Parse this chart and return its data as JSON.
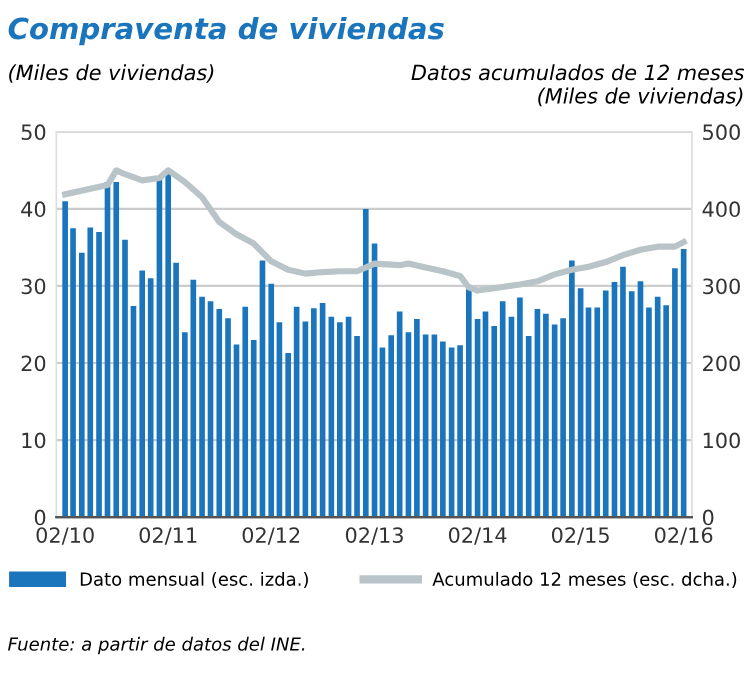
{
  "chart_data": {
    "type": "bar",
    "title": "Compraventa de viviendas",
    "ylabel": "(Miles de viviendas)",
    "y2label": "Datos acumulados de 12 meses\n(Miles de viviendas)",
    "x": [
      "2010-02",
      "2010-03",
      "2010-04",
      "2010-05",
      "2010-06",
      "2010-07",
      "2010-08",
      "2010-09",
      "2010-10",
      "2010-11",
      "2010-12",
      "2011-01",
      "2011-02",
      "2011-03",
      "2011-04",
      "2011-05",
      "2011-06",
      "2011-07",
      "2011-08",
      "2011-09",
      "2011-10",
      "2011-11",
      "2011-12",
      "2012-01",
      "2012-02",
      "2012-03",
      "2012-04",
      "2012-05",
      "2012-06",
      "2012-07",
      "2012-08",
      "2012-09",
      "2012-10",
      "2012-11",
      "2012-12",
      "2013-01",
      "2013-02",
      "2013-03",
      "2013-04",
      "2013-05",
      "2013-06",
      "2013-07",
      "2013-08",
      "2013-09",
      "2013-10",
      "2013-11",
      "2013-12",
      "2014-01",
      "2014-02",
      "2014-03",
      "2014-04",
      "2014-05",
      "2014-06",
      "2014-07",
      "2014-08",
      "2014-09",
      "2014-10",
      "2014-11",
      "2014-12",
      "2015-01",
      "2015-02",
      "2015-03",
      "2015-04",
      "2015-05",
      "2015-06",
      "2015-07",
      "2015-08",
      "2015-09",
      "2015-10",
      "2015-11",
      "2015-12",
      "2016-01",
      "2016-02"
    ],
    "series": [
      {
        "name": "Dato mensual (esc. izda.)",
        "color": "#1a75bc",
        "values": [
          41,
          37.5,
          34.3,
          37.6,
          37,
          43.5,
          43.5,
          36,
          27.4,
          32,
          31,
          44,
          45,
          33,
          24,
          30.8,
          28.6,
          28,
          27,
          25.8,
          22.4,
          27.3,
          23,
          33.3,
          30.3,
          25.3,
          21.3,
          27.3,
          25.4,
          27.1,
          27.8,
          26,
          25.3,
          26,
          23.5,
          40,
          35.5,
          22,
          23.6,
          26.7,
          24,
          25.7,
          23.7,
          23.7,
          22.8,
          22,
          22.3,
          30,
          25.7,
          26.7,
          24.8,
          28,
          26,
          28.5,
          23.5,
          27,
          26.4,
          25,
          25.8,
          33.3,
          29.7,
          27.2,
          27.2,
          29.4,
          30.5,
          32.5,
          29.3,
          30.6,
          27.2,
          28.6,
          27.5,
          32.3,
          34.8
        ]
      },
      {
        "name": "Acumulado 12 meses (esc. dcha.)",
        "type": "line",
        "axis": "y2",
        "color": "#b8c4c8",
        "x": [
          "2010-02",
          "2010-07",
          "2010-08",
          "2010-09",
          "2010-11",
          "2011-01",
          "2011-02",
          "2011-04",
          "2011-06",
          "2011-08",
          "2011-10",
          "2011-12",
          "2012-02",
          "2012-04",
          "2012-06",
          "2012-08",
          "2012-10",
          "2012-12",
          "2013-01",
          "2013-02",
          "2013-05",
          "2013-06",
          "2013-08",
          "2013-10",
          "2013-12",
          "2014-01",
          "2014-02",
          "2014-04",
          "2014-07",
          "2014-09",
          "2014-11",
          "2015-01",
          "2015-03",
          "2015-05",
          "2015-07",
          "2015-09",
          "2015-11",
          "2016-01",
          "2016-02"
        ],
        "values": [
          419,
          431,
          450,
          445,
          437,
          440,
          450,
          435,
          415,
          383,
          367,
          355,
          332,
          321,
          316,
          318,
          319,
          319,
          324,
          329,
          327,
          329,
          324,
          319,
          313,
          298,
          294,
          297,
          302,
          306,
          315,
          321,
          325,
          331,
          340,
          347,
          351,
          351,
          357
        ]
      }
    ],
    "xlim": [
      "2010-01",
      "2016-03"
    ],
    "xticks": [
      {
        "value": "2010-02",
        "label": "02/10"
      },
      {
        "value": "2011-02",
        "label": "02/11"
      },
      {
        "value": "2012-02",
        "label": "02/12"
      },
      {
        "value": "2013-02",
        "label": "02/13"
      },
      {
        "value": "2014-02",
        "label": "02/14"
      },
      {
        "value": "2015-02",
        "label": "02/15"
      },
      {
        "value": "2016-02",
        "label": "02/16"
      }
    ],
    "ylim": [
      0,
      50
    ],
    "yticks": [
      0,
      10,
      20,
      30,
      40,
      50
    ],
    "y2lim": [
      0,
      500
    ],
    "y2ticks": [
      0,
      100,
      200,
      300,
      400,
      500
    ],
    "grid": "y",
    "legend": "bottom",
    "annotations": [
      "Fuente: a partir de datos del INE."
    ]
  }
}
